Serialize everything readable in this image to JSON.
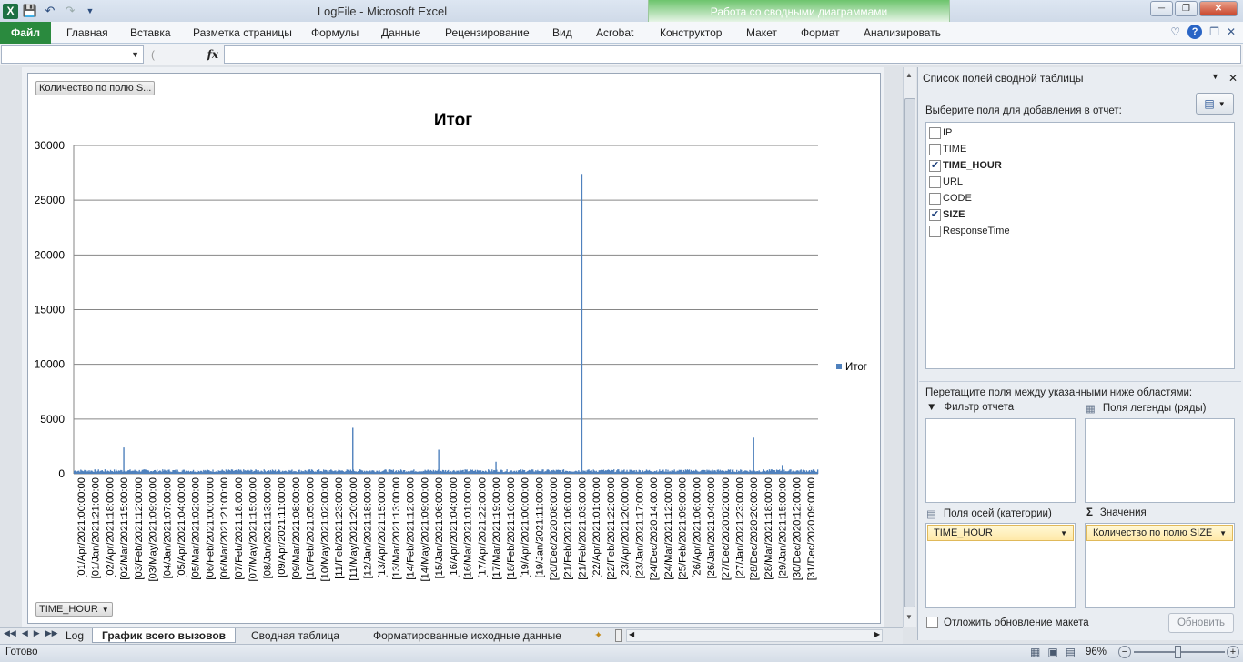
{
  "window": {
    "title": "LogFile  -  Microsoft Excel",
    "context_group": "Работа со сводными диаграммами"
  },
  "ribbon": {
    "file_tab": "Файл",
    "tabs": [
      "Главная",
      "Вставка",
      "Разметка страницы",
      "Формулы",
      "Данные",
      "Рецензирование",
      "Вид",
      "Acrobat"
    ],
    "context_tabs": [
      "Конструктор",
      "Макет",
      "Формат",
      "Анализировать"
    ]
  },
  "formula_bar": {
    "fx": "fx",
    "name_box": "",
    "formula": ""
  },
  "chart": {
    "filter_button": "Количество по полю S...",
    "axis_button": "TIME_HOUR",
    "legend_label": "Итог"
  },
  "chart_data": {
    "type": "bar",
    "title": "Итог",
    "xlabel": "",
    "ylabel": "",
    "ylim": [
      0,
      30000
    ],
    "yticks": [
      0,
      5000,
      10000,
      15000,
      20000,
      25000,
      30000
    ],
    "grid": true,
    "legend_position": "right",
    "series_color": "#4f81bd",
    "tick_labels": [
      "[01/Apr/2021:00:00:00",
      "[01/Jan/2021:21:00:00",
      "[02/Apr/2021:18:00:00",
      "[02/Mar/2021:15:00:00",
      "[03/Feb/2021:12:00:00",
      "[03/May/2021:09:00:00",
      "[04/Jan/2021:07:00:00",
      "[05/Apr/2021:04:00:00",
      "[05/Mar/2021:02:00:00",
      "[06/Feb/2021:00:00:00",
      "[06/Mar/2021:21:00:00",
      "[07/Feb/2021:18:00:00",
      "[07/May/2021:15:00:00",
      "[08/Jan/2021:13:00:00",
      "[09/Apr/2021:11:00:00",
      "[09/Mar/2021:08:00:00",
      "[10/Feb/2021:05:00:00",
      "[10/May/2021:02:00:00",
      "[11/Feb/2021:23:00:00",
      "[11/May/2021:20:00:00",
      "[12/Jan/2021:18:00:00",
      "[13/Apr/2021:15:00:00",
      "[13/Mar/2021:13:00:00",
      "[14/Feb/2021:12:00:00",
      "[14/May/2021:09:00:00",
      "[15/Jan/2021:06:00:00",
      "[16/Apr/2021:04:00:00",
      "[16/Mar/2021:01:00:00",
      "[17/Apr/2021:22:00:00",
      "[17/Mar/2021:19:00:00",
      "[18/Feb/2021:16:00:00",
      "[19/Apr/2021:00:00:00",
      "[19/Jan/2021:11:00:00",
      "[20/Dec/2020:08:00:00",
      "[21/Feb/2021:06:00:00",
      "[21/Feb/2021:03:00:00",
      "[22/Apr/2021:01:00:00",
      "[22/Feb/2021:22:00:00",
      "[23/Apr/2021:20:00:00",
      "[23/Jan/2021:17:00:00",
      "[24/Dec/2020:14:00:00",
      "[24/Mar/2021:12:00:00",
      "[25/Feb/2021:09:00:00",
      "[26/Apr/2021:06:00:00",
      "[26/Jan/2021:04:00:00",
      "[27/Dec/2020:02:00:00",
      "[27/Jan/2021:23:00:00",
      "[28/Dec/2020:20:00:00",
      "[28/Mar/2021:18:00:00",
      "[29/Jan/2021:15:00:00",
      "[30/Dec/2020:12:00:00",
      "[31/Dec/2020:09:00:00"
    ],
    "baseline_value": 280,
    "spikes": [
      {
        "label": "[02/Mar/2021:15:00:00",
        "value": 2400
      },
      {
        "label": "[11/May/2021:20:00:00",
        "value": 4200
      },
      {
        "label": "[15/Jan/2021:06:00:00",
        "value": 2200
      },
      {
        "label": "[17/Mar/2021:19:00:00",
        "value": 1100
      },
      {
        "label": "[21/Feb/2021:03:00:00",
        "value": 27400
      },
      {
        "label": "[28/Dec/2020:20:00:00",
        "value": 3300
      },
      {
        "label": "[29/Jan/2021:15:00:00",
        "value": 800
      }
    ]
  },
  "pivot_panel": {
    "title": "Список полей сводной таблицы",
    "choose_label": "Выберите поля для добавления в отчет:",
    "fields": [
      {
        "name": "IP",
        "checked": false
      },
      {
        "name": "TIME",
        "checked": false
      },
      {
        "name": "TIME_HOUR",
        "checked": true
      },
      {
        "name": "URL",
        "checked": false
      },
      {
        "name": "CODE",
        "checked": false
      },
      {
        "name": "SIZE",
        "checked": true
      },
      {
        "name": "ResponseTime",
        "checked": false
      }
    ],
    "drag_label": "Перетащите поля между указанными ниже областями:",
    "zones": {
      "filter": "Фильтр отчета",
      "legend": "Поля легенды (ряды)",
      "axis": "Поля осей (категории)",
      "values": "Значения"
    },
    "axis_chip": "TIME_HOUR",
    "values_chip": "Количество по полю SIZE",
    "defer_label": "Отложить обновление макета",
    "update_button": "Обновить"
  },
  "sheets": {
    "tabs": [
      "Log",
      "График всего вызовов",
      "Сводная таблица",
      "Форматированные исходные данные"
    ],
    "active": 1
  },
  "status": {
    "ready": "Готово",
    "zoom": "96%"
  }
}
